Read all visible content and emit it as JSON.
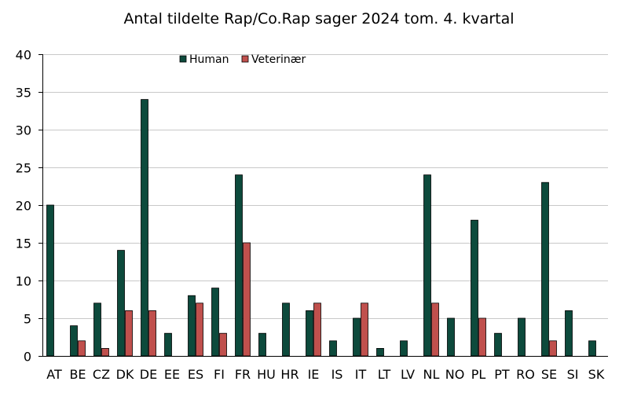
{
  "chart_data": {
    "type": "bar",
    "title": "Antal tildelte Rap/Co.Rap sager 2024 tom. 4. kvartal",
    "xlabel": "",
    "ylabel": "",
    "ylim": [
      0,
      40
    ],
    "yticks": [
      0,
      5,
      10,
      15,
      20,
      25,
      30,
      35,
      40
    ],
    "grid": true,
    "legend_position": "top",
    "categories": [
      "AT",
      "BE",
      "CZ",
      "DK",
      "DE",
      "EE",
      "ES",
      "FI",
      "FR",
      "HU",
      "HR",
      "IE",
      "IS",
      "IT",
      "LT",
      "LV",
      "NL",
      "NO",
      "PL",
      "PT",
      "RO",
      "SE",
      "SI",
      "SK"
    ],
    "series": [
      {
        "name": "Human",
        "color": "#0d4a3c",
        "values": [
          20,
          4,
          7,
          14,
          34,
          3,
          8,
          9,
          24,
          3,
          7,
          6,
          2,
          5,
          1,
          2,
          24,
          5,
          18,
          3,
          5,
          23,
          6,
          2
        ]
      },
      {
        "name": "Veterinær",
        "color": "#c0504d",
        "values": [
          0,
          2,
          1,
          6,
          6,
          0,
          7,
          3,
          15,
          0,
          0,
          7,
          0,
          7,
          0,
          0,
          7,
          0,
          5,
          0,
          0,
          2,
          0,
          0
        ]
      }
    ]
  }
}
